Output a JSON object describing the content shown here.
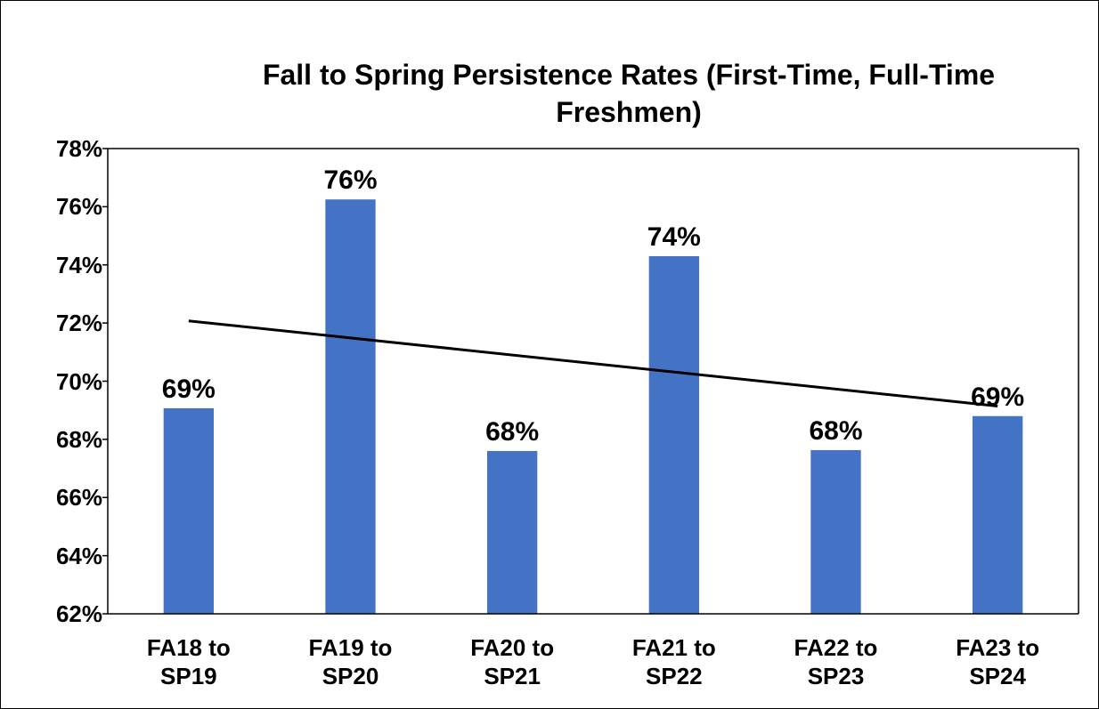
{
  "chart_data": {
    "type": "bar",
    "title": "Fall to Spring Persistence Rates (First-Time, Full-Time Freshmen)",
    "categories": [
      "FA18 to SP19",
      "FA19 to SP20",
      "FA20 to SP21",
      "FA21 to SP22",
      "FA22 to SP23",
      "FA23 to SP24"
    ],
    "values": [
      69.07,
      76.25,
      67.6,
      74.3,
      67.63,
      68.8
    ],
    "value_labels": [
      "69%",
      "76%",
      "68%",
      "74%",
      "68%",
      "69%"
    ],
    "color": "#4472c4",
    "trendline": "linear",
    "trendline_color": "#000000",
    "ylim": [
      62,
      78
    ],
    "yticks": [
      {
        "value": 62,
        "label": "62%"
      },
      {
        "value": 64,
        "label": "64%"
      },
      {
        "value": 66,
        "label": "66%"
      },
      {
        "value": 68,
        "label": "68%"
      },
      {
        "value": 70,
        "label": "70%"
      },
      {
        "value": 72,
        "label": "72%"
      },
      {
        "value": 74,
        "label": "74%"
      },
      {
        "value": 76,
        "label": "76%"
      },
      {
        "value": 78,
        "label": "78%"
      }
    ],
    "grid": false
  }
}
